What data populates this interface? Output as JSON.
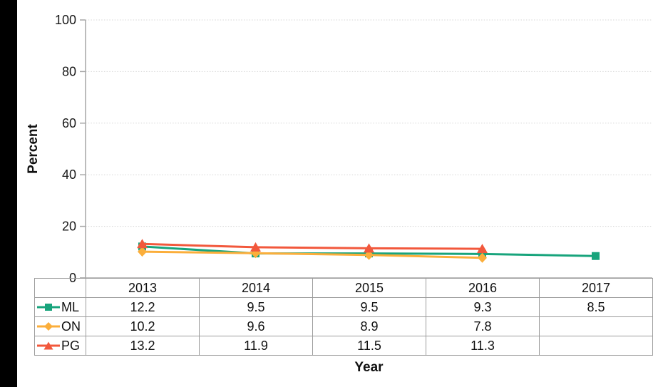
{
  "page": {
    "background_color": "#ffffff",
    "left_bar_color": "#000000"
  },
  "chart_data": {
    "type": "line",
    "title": "",
    "xlabel": "Year",
    "ylabel": "Percent",
    "x": [
      "2013",
      "2014",
      "2015",
      "2016",
      "2017"
    ],
    "ylim": [
      0,
      100
    ],
    "yticks": [
      0,
      20,
      40,
      60,
      80,
      100
    ],
    "grid": "horizontal-dotted",
    "gridline_color": "#d6d6d6",
    "axis_color": "#a6a6a6",
    "legend_position": "table-left",
    "series": [
      {
        "name": "ML",
        "marker": "square",
        "color": "#18a47c",
        "values": [
          12.2,
          9.5,
          9.5,
          9.3,
          8.5
        ]
      },
      {
        "name": "ON",
        "marker": "diamond",
        "color": "#fbae3b",
        "values": [
          10.2,
          9.6,
          8.9,
          7.8,
          null
        ]
      },
      {
        "name": "PG",
        "marker": "triangle",
        "color": "#f2583c",
        "values": [
          13.2,
          11.9,
          11.5,
          11.3,
          null
        ]
      }
    ]
  }
}
